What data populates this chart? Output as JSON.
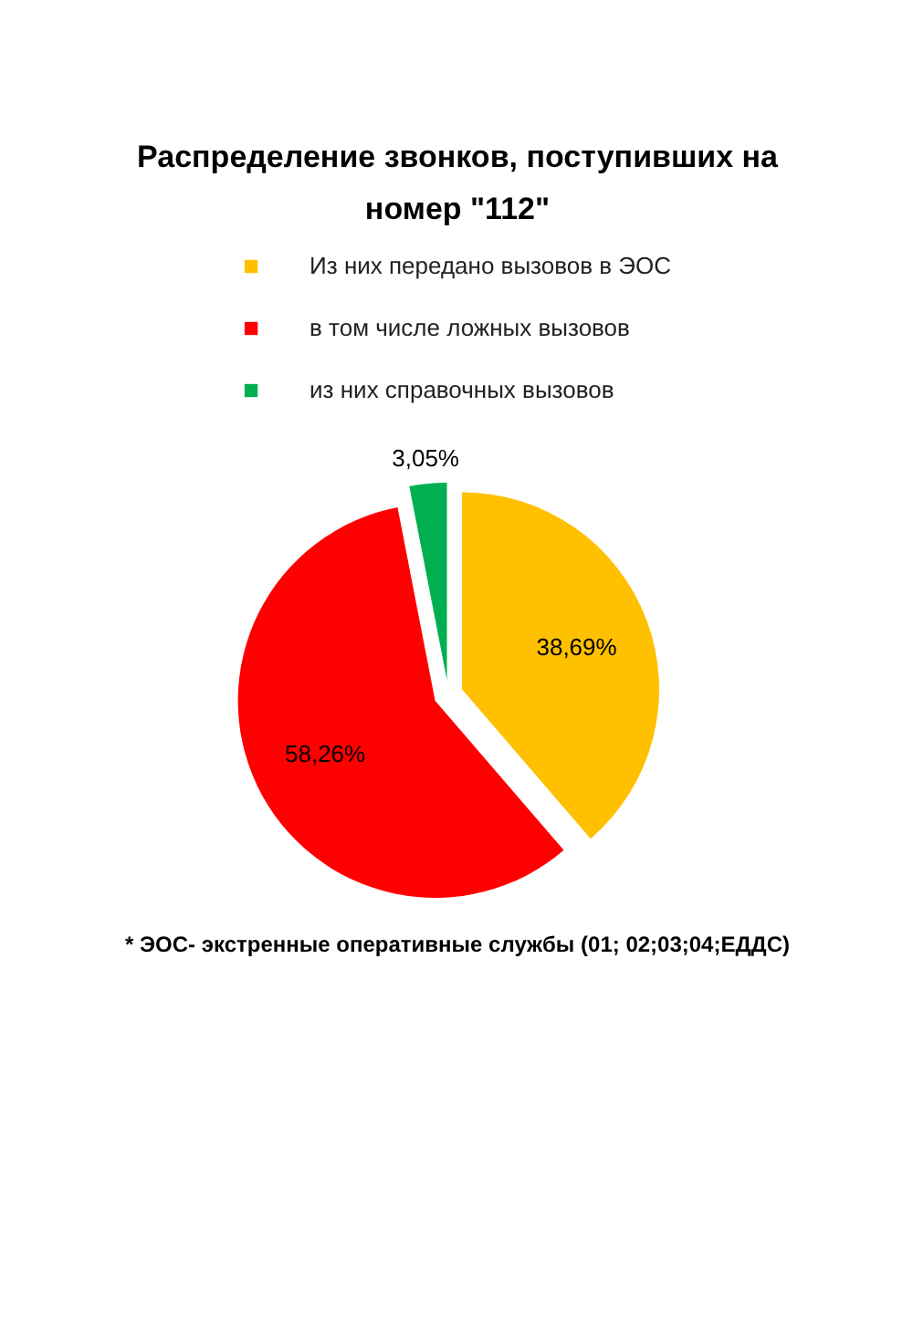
{
  "chart_data": {
    "type": "pie",
    "title": "Распределение звонков, поступивших на номер \"112\"",
    "categories": [
      "Из них передано вызовов в ЭОС",
      "в том числе ложных вызовов",
      "из них справочных вызовов"
    ],
    "values": [
      38.69,
      58.26,
      3.05
    ],
    "colors": [
      "#ffc000",
      "#ff0000",
      "#00b050"
    ],
    "value_labels": [
      "38,69%",
      "58,26%",
      "3,05%"
    ],
    "legend": "top",
    "annotations": [
      "* ЭОС- экстренные оперативные службы (01; 02;03;04;ЕДДС)"
    ]
  }
}
